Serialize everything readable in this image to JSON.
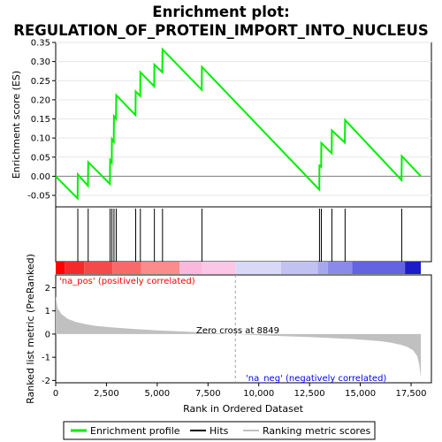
{
  "title_line1": "Enrichment plot:",
  "title_line2": "REGULATION_OF_PROTEIN_IMPORT_INTO_NUCLEUS",
  "colors": {
    "es_line": "#00ee00",
    "hits": "#000000",
    "ranked_fill": "#c0c0c0",
    "pos_label": "#ff0000",
    "neg_label": "#0000ff",
    "zero_line": "#a0a0a0"
  },
  "chart_data": [
    {
      "type": "line",
      "title": "",
      "xlabel": "",
      "ylabel": "Enrichment score (ES)",
      "xlim": [
        0,
        18500
      ],
      "ylim": [
        -0.08,
        0.35
      ],
      "yticks": [
        -0.05,
        0.0,
        0.05,
        0.1,
        0.15,
        0.2,
        0.25,
        0.3,
        0.35
      ],
      "ytick_labels": [
        "-0.05",
        "0.00",
        "0.05",
        "0.10",
        "0.15",
        "0.20",
        "0.25",
        "0.30",
        "0.35"
      ],
      "series": [
        {
          "name": "Enrichment profile",
          "x": [
            0,
            1080,
            1090,
            1590,
            1600,
            2670,
            2680,
            2760,
            2770,
            2860,
            2870,
            2970,
            2980,
            3930,
            3940,
            4160,
            4170,
            4850,
            4860,
            5250,
            5260,
            7190,
            7200,
            12980,
            12990,
            13070,
            13080,
            13590,
            13600,
            14240,
            14250,
            17030,
            17040,
            17980
          ],
          "y": [
            0.0,
            -0.058,
            0.005,
            -0.025,
            0.037,
            -0.02,
            0.042,
            0.036,
            0.097,
            0.09,
            0.157,
            0.15,
            0.212,
            0.16,
            0.222,
            0.21,
            0.272,
            0.235,
            0.292,
            0.272,
            0.332,
            0.226,
            0.286,
            -0.035,
            0.028,
            0.025,
            0.087,
            0.06,
            0.12,
            0.088,
            0.147,
            -0.01,
            0.053,
            0.0
          ]
        }
      ]
    },
    {
      "type": "scatter",
      "name": "Hits",
      "x": [
        1090,
        1600,
        2680,
        2770,
        2870,
        2980,
        3940,
        4170,
        4860,
        5260,
        7200,
        12990,
        13080,
        13600,
        14250,
        17040
      ]
    },
    {
      "type": "area",
      "xlabel": "Rank in Ordered Dataset",
      "ylabel": "Ranked list metric (PreRanked)",
      "xlim": [
        0,
        18500
      ],
      "ylim": [
        -2.1,
        2.55
      ],
      "xticks": [
        0,
        2500,
        5000,
        7500,
        10000,
        12500,
        15000,
        17500
      ],
      "xtick_labels": [
        "0",
        "2,500",
        "5,000",
        "7,500",
        "10,000",
        "12,500",
        "15,000",
        "17,500"
      ],
      "yticks": [
        -2,
        -1,
        0,
        1,
        2
      ],
      "ytick_labels": [
        "-2",
        "-1",
        "0",
        "1",
        "2"
      ],
      "series": [
        {
          "name": "Ranking metric scores",
          "x": [
            0,
            100,
            300,
            600,
            1000,
            1500,
            2000,
            3000,
            4000,
            5000,
            6000,
            7000,
            8000,
            8849,
            9500,
            10500,
            11500,
            12500,
            13500,
            14500,
            15500,
            16000,
            16500,
            17000,
            17300,
            17600,
            17800,
            17900,
            17980
          ],
          "y": [
            1.65,
            1.1,
            0.85,
            0.65,
            0.52,
            0.42,
            0.35,
            0.27,
            0.21,
            0.16,
            0.12,
            0.08,
            0.04,
            0.0,
            -0.03,
            -0.07,
            -0.1,
            -0.13,
            -0.17,
            -0.21,
            -0.27,
            -0.31,
            -0.37,
            -0.46,
            -0.55,
            -0.7,
            -0.95,
            -1.3,
            -1.9
          ]
        }
      ],
      "zero_cross_rank": 8849,
      "zero_cross_label": "Zero cross at 8849",
      "pos_label": "'na_pos' (positively correlated)",
      "neg_label": "'na_neg' (negatively correlated)"
    }
  ],
  "legend": {
    "items": [
      {
        "label": "Enrichment profile",
        "color": "#00ee00"
      },
      {
        "label": "Hits",
        "color": "#000000"
      },
      {
        "label": "Ranking metric scores",
        "color": "#c0c0c0"
      }
    ]
  }
}
